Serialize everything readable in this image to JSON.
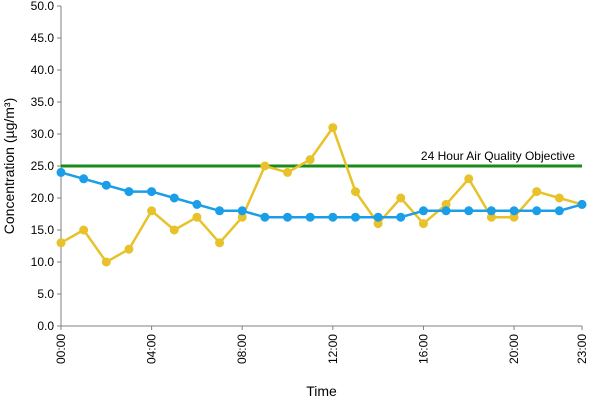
{
  "chart_data": {
    "type": "line",
    "xlabel": "Time",
    "ylabel": "Concentration (µg/m³)",
    "ylim": [
      0,
      50
    ],
    "yticks": [
      "0.0",
      "5.0",
      "10.0",
      "15.0",
      "20.0",
      "25.0",
      "30.0",
      "35.0",
      "40.0",
      "45.0",
      "50.0"
    ],
    "xlim": [
      0,
      23
    ],
    "xtick_positions": [
      0,
      4,
      8,
      12,
      16,
      20,
      23
    ],
    "xticks": [
      "00:00",
      "04:00",
      "08:00",
      "12:00",
      "16:00",
      "20:00",
      "23:00"
    ],
    "grid": false,
    "series": [
      {
        "color": "#e8c22a",
        "x": [
          0,
          1,
          2,
          3,
          4,
          5,
          6,
          7,
          8,
          9,
          10,
          11,
          12,
          13,
          14,
          15,
          16,
          17,
          18,
          19,
          20,
          21,
          22,
          23
        ],
        "values": [
          13,
          15,
          10,
          12,
          18,
          15,
          17,
          13,
          17,
          25,
          24,
          26,
          31,
          21,
          16,
          20,
          16,
          19,
          23,
          17,
          17,
          21,
          20,
          19
        ]
      },
      {
        "color": "#1a9ee8",
        "x": [
          0,
          1,
          2,
          3,
          4,
          5,
          6,
          7,
          8,
          9,
          10,
          11,
          12,
          13,
          14,
          15,
          16,
          17,
          18,
          19,
          20,
          21,
          22,
          23
        ],
        "values": [
          24,
          23,
          22,
          21,
          21,
          20,
          19,
          18,
          18,
          17,
          17,
          17,
          17,
          17,
          17,
          17,
          18,
          18,
          18,
          18,
          18,
          18,
          18,
          19
        ]
      }
    ],
    "reference_line": {
      "value": 25,
      "label": "24 Hour Air Quality Objective",
      "color": "#1a8a1a"
    }
  }
}
